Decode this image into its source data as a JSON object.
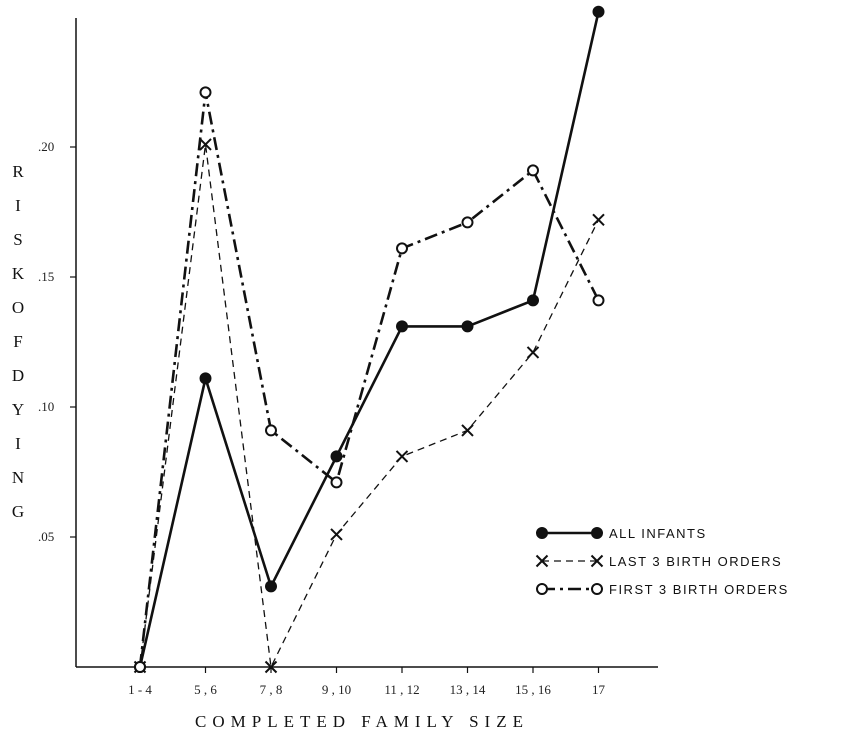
{
  "chart_data": {
    "type": "line",
    "xlabel": "COMPLETED FAMILY SIZE",
    "ylabel": "RISK OF DYING",
    "categories": [
      "1 - 4",
      "5 , 6",
      "7 , 8",
      "9 , 10",
      "11 , 12",
      "13 , 14",
      "15 , 16",
      "17"
    ],
    "y_ticks": [
      ".05",
      ".10",
      ".15",
      ".20"
    ],
    "ylim": [
      0,
      0.25
    ],
    "grid": false,
    "legend_position": "bottom-right",
    "series": [
      {
        "name": "ALL INFANTS",
        "values": [
          0.0,
          0.111,
          0.031,
          0.081,
          0.131,
          0.131,
          0.141,
          0.252
        ],
        "line": "solid",
        "marker": "filled-circle",
        "color": "#111111"
      },
      {
        "name": "LAST 3 BIRTH ORDERS",
        "values": [
          0.0,
          0.201,
          0.0,
          0.051,
          0.081,
          0.091,
          0.121,
          0.172
        ],
        "line": "dashed",
        "marker": "x",
        "color": "#111111"
      },
      {
        "name": "FIRST 3 BIRTH ORDERS",
        "values": [
          0.0,
          0.221,
          0.091,
          0.071,
          0.161,
          0.171,
          0.191,
          0.141
        ],
        "line": "dash-dot",
        "marker": "open-circle",
        "color": "#111111"
      }
    ]
  }
}
